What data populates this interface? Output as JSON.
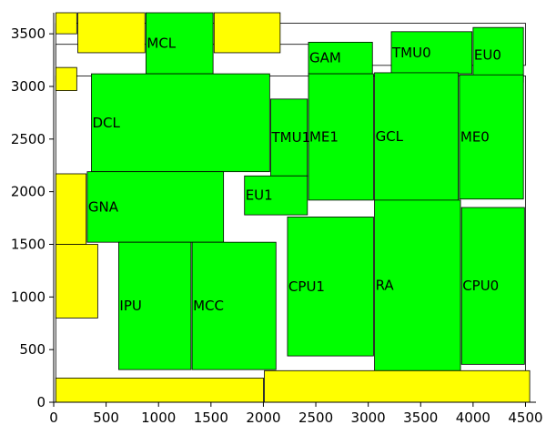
{
  "chart_data": {
    "type": "floorplan",
    "xlim": [
      0,
      4600
    ],
    "ylim": [
      0,
      3700
    ],
    "xticks": [
      0,
      500,
      1000,
      1500,
      2000,
      2500,
      3000,
      3500,
      4000,
      4500
    ],
    "yticks": [
      0,
      500,
      1000,
      1500,
      2000,
      2500,
      3000,
      3500
    ],
    "grid": false,
    "legend": "none",
    "colors": {
      "macro": "#00ff00",
      "filler": "#ffff00",
      "empty": "#ffffff",
      "outline": "#000000"
    },
    "blocks": [
      {
        "name": "",
        "kind": "empty",
        "x0": 20,
        "y0": 3200,
        "x1": 4500,
        "y1": 3600
      },
      {
        "name": "",
        "kind": "empty",
        "x0": 20,
        "y0": 3050,
        "x1": 2500,
        "y1": 3400
      },
      {
        "name": "",
        "kind": "empty",
        "x0": 20,
        "y0": 0,
        "x1": 4500,
        "y1": 3100
      },
      {
        "name": "",
        "kind": "filler",
        "x0": 20,
        "y0": 3500,
        "x1": 220,
        "y1": 3720
      },
      {
        "name": "",
        "kind": "filler",
        "x0": 230,
        "y0": 3320,
        "x1": 870,
        "y1": 3720
      },
      {
        "name": "",
        "kind": "filler",
        "x0": 1530,
        "y0": 3320,
        "x1": 2160,
        "y1": 3720
      },
      {
        "name": "",
        "kind": "filler",
        "x0": 20,
        "y0": 2960,
        "x1": 220,
        "y1": 3180
      },
      {
        "name": "MCL",
        "kind": "macro",
        "x0": 880,
        "y0": 3120,
        "x1": 1520,
        "y1": 3720
      },
      {
        "name": "DCL",
        "kind": "macro",
        "x0": 360,
        "y0": 2190,
        "x1": 2060,
        "y1": 3120
      },
      {
        "name": "GAM",
        "kind": "macro",
        "x0": 2430,
        "y0": 3120,
        "x1": 3040,
        "y1": 3420
      },
      {
        "name": "TMU0",
        "kind": "macro",
        "x0": 3220,
        "y0": 3120,
        "x1": 3990,
        "y1": 3520
      },
      {
        "name": "EU0",
        "kind": "macro",
        "x0": 4000,
        "y0": 3040,
        "x1": 4480,
        "y1": 3560
      },
      {
        "name": "TMU1",
        "kind": "macro",
        "x0": 2070,
        "y0": 2150,
        "x1": 2420,
        "y1": 2880
      },
      {
        "name": "ME1",
        "kind": "macro",
        "x0": 2430,
        "y0": 1920,
        "x1": 3050,
        "y1": 3120
      },
      {
        "name": "GCL",
        "kind": "macro",
        "x0": 3060,
        "y0": 1920,
        "x1": 3860,
        "y1": 3130
      },
      {
        "name": "ME0",
        "kind": "macro",
        "x0": 3870,
        "y0": 1930,
        "x1": 4480,
        "y1": 3110
      },
      {
        "name": "",
        "kind": "filler",
        "x0": 20,
        "y0": 1500,
        "x1": 310,
        "y1": 2170
      },
      {
        "name": "GNA",
        "kind": "macro",
        "x0": 320,
        "y0": 1520,
        "x1": 1620,
        "y1": 2190
      },
      {
        "name": "EU1",
        "kind": "macro",
        "x0": 1820,
        "y0": 1780,
        "x1": 2420,
        "y1": 2150
      },
      {
        "name": "",
        "kind": "filler",
        "x0": 20,
        "y0": 800,
        "x1": 420,
        "y1": 1500
      },
      {
        "name": "IPU",
        "kind": "macro",
        "x0": 620,
        "y0": 310,
        "x1": 1310,
        "y1": 1520
      },
      {
        "name": "MCC",
        "kind": "macro",
        "x0": 1320,
        "y0": 310,
        "x1": 2120,
        "y1": 1520
      },
      {
        "name": "CPU1",
        "kind": "macro",
        "x0": 2230,
        "y0": 440,
        "x1": 3050,
        "y1": 1760
      },
      {
        "name": "RA",
        "kind": "macro",
        "x0": 3060,
        "y0": 300,
        "x1": 3880,
        "y1": 1920
      },
      {
        "name": "CPU0",
        "kind": "macro",
        "x0": 3890,
        "y0": 360,
        "x1": 4490,
        "y1": 1850
      },
      {
        "name": "",
        "kind": "filler",
        "x0": 20,
        "y0": 0,
        "x1": 2000,
        "y1": 230
      },
      {
        "name": "",
        "kind": "filler",
        "x0": 2010,
        "y0": 0,
        "x1": 4540,
        "y1": 300
      }
    ]
  }
}
